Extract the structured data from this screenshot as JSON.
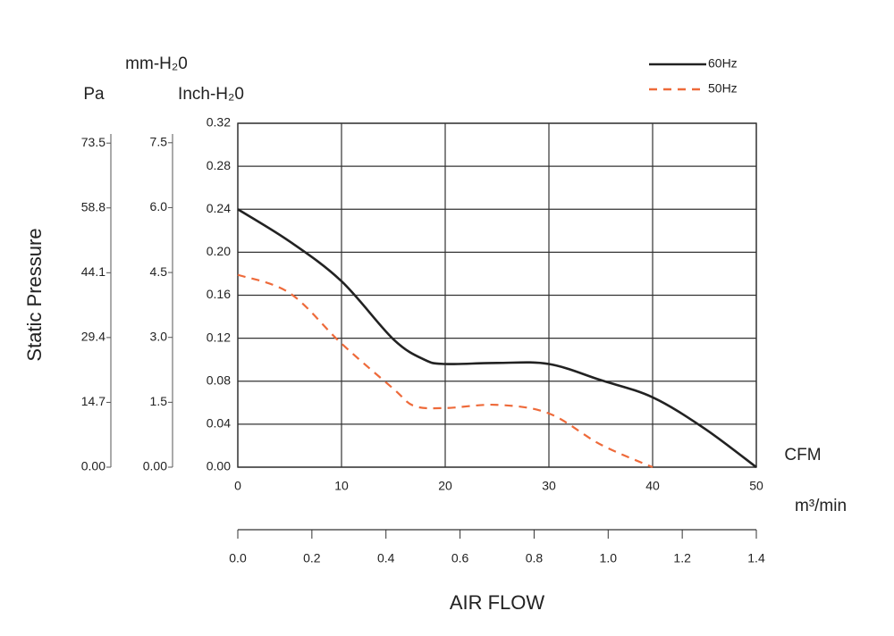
{
  "chart_data": {
    "type": "line",
    "y_title": "Static Pressure",
    "x_title": "AIR FLOW",
    "x_unit": "CFM",
    "y_unit": "Inch-H₂0",
    "xlim": [
      0,
      50
    ],
    "xticks": [
      0,
      10,
      20,
      30,
      40,
      50
    ],
    "ylim": [
      0,
      0.32
    ],
    "yticks": [
      {
        "value": 0,
        "label": "0.00"
      },
      0.04,
      0.08,
      0.12,
      0.16,
      {
        "value": 0.2,
        "label": "0.20"
      },
      0.24,
      0.28,
      0.32
    ],
    "grid": true,
    "legend": "upper right",
    "x2": {
      "label": "m³/min",
      "xlim": [
        0,
        1.4
      ],
      "xticks": [
        {
          "value": 0,
          "label": "0.0"
        },
        0.2,
        0.4,
        0.6,
        0.8,
        {
          "value": 1,
          "label": "1.0"
        },
        1.2,
        1.4
      ]
    },
    "extra_axes": [
      {
        "label": "Pa",
        "ylim": [
          0,
          78
        ],
        "yticks": [
          {
            "value": 0,
            "label": "0.00"
          },
          14.7,
          29.4,
          44.1,
          58.8,
          73.5
        ]
      },
      {
        "label": "mm-H₂0",
        "ylim": [
          0,
          7.95
        ],
        "yticks": [
          {
            "value": 0,
            "label": "0.00"
          },
          1.5,
          {
            "value": 3,
            "label": "3.0"
          },
          4.5,
          {
            "value": 6,
            "label": "6.0"
          },
          7.5
        ]
      }
    ],
    "series": [
      {
        "name": "60Hz",
        "color": "#222222",
        "dash": false,
        "x": [
          0,
          5,
          10,
          15,
          18,
          20,
          25,
          30,
          35,
          40,
          45,
          50
        ],
        "values": [
          0.24,
          0.21,
          0.173,
          0.119,
          0.1,
          0.096,
          0.097,
          0.096,
          0.081,
          0.065,
          0.036,
          0
        ]
      },
      {
        "name": "50Hz",
        "color": "#ee6a3a",
        "dash": true,
        "x": [
          0,
          5,
          10,
          15,
          17,
          20,
          25,
          30,
          35,
          40
        ],
        "values": [
          0.179,
          0.162,
          0.115,
          0.073,
          0.057,
          0.055,
          0.058,
          0.05,
          0.021,
          0
        ]
      }
    ]
  }
}
